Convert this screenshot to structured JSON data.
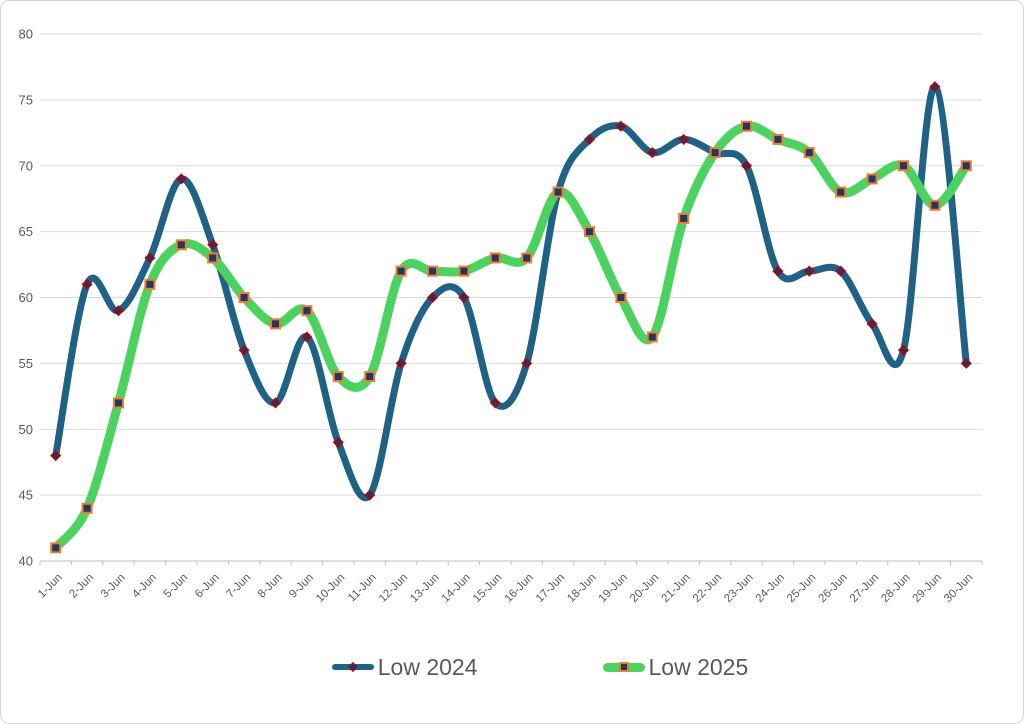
{
  "frame": {
    "background": "#FFFFFF",
    "border_color": "#D7D7D7"
  },
  "axis_style": {
    "gridline_color": "#D9D9D9",
    "axis_line_color": "#BFBFBF",
    "label_color": "#595959"
  },
  "chart_data": {
    "type": "line",
    "title": "",
    "xlabel": "",
    "ylabel": "",
    "grid": true,
    "smooth": true,
    "legend_position": "bottom",
    "ylim": [
      40,
      80
    ],
    "ytick_step": 5,
    "y_tick_labels": [
      "40",
      "45",
      "50",
      "55",
      "60",
      "65",
      "70",
      "75",
      "80"
    ],
    "x": [
      "1-Jun",
      "2-Jun",
      "3-Jun",
      "4-Jun",
      "5-Jun",
      "6-Jun",
      "7-Jun",
      "8-Jun",
      "9-Jun",
      "10-Jun",
      "11-Jun",
      "12-Jun",
      "13-Jun",
      "14-Jun",
      "15-Jun",
      "16-Jun",
      "17-Jun",
      "18-Jun",
      "19-Jun",
      "20-Jun",
      "21-Jun",
      "22-Jun",
      "23-Jun",
      "24-Jun",
      "25-Jun",
      "26-Jun",
      "27-Jun",
      "28-Jun",
      "29-Jun",
      "30-Jun"
    ],
    "series": [
      {
        "name": "Low 2024",
        "values": [
          48,
          61,
          59,
          63,
          69,
          64,
          56,
          52,
          57,
          49,
          45,
          55,
          60,
          60,
          52,
          55,
          68,
          72,
          73,
          71,
          72,
          71,
          70,
          62,
          62,
          62,
          58,
          56,
          76,
          55
        ],
        "color": "#1F6285",
        "line_width": 7,
        "marker": "diamond",
        "marker_fill": "#1F3864",
        "marker_outline": "#C00000"
      },
      {
        "name": "Low 2025",
        "values": [
          41,
          44,
          52,
          61,
          64,
          63,
          60,
          58,
          59,
          54,
          54,
          62,
          62,
          62,
          63,
          63,
          68,
          65,
          60,
          57,
          66,
          71,
          73,
          72,
          71,
          68,
          69,
          70,
          67,
          70
        ],
        "color": "#4CD25F",
        "line_width": 9,
        "marker": "square",
        "marker_fill": "#1F3864",
        "marker_outline": "#ED7D31"
      }
    ]
  }
}
